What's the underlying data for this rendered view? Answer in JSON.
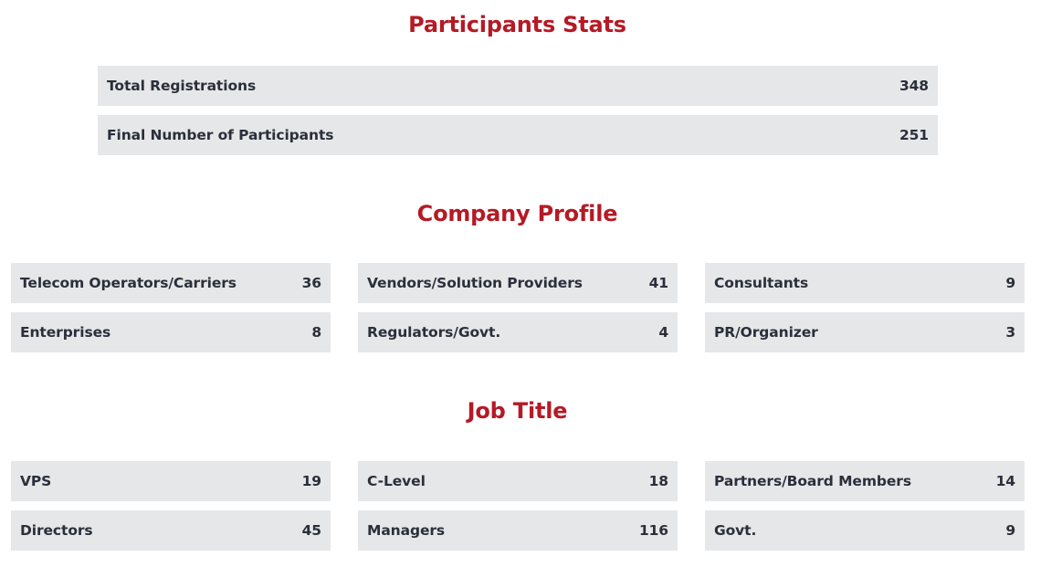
{
  "participants": {
    "title": "Participants Stats",
    "rows": [
      {
        "label": "Total Registrations",
        "value": "348"
      },
      {
        "label": "Final Number of Participants",
        "value": "251"
      }
    ]
  },
  "company_profile": {
    "title": "Company Profile",
    "rows": [
      {
        "label": "Telecom Operators/Carriers",
        "value": "36"
      },
      {
        "label": "Vendors/Solution Providers",
        "value": "41"
      },
      {
        "label": "Consultants",
        "value": "9"
      },
      {
        "label": "Enterprises",
        "value": "8"
      },
      {
        "label": "Regulators/Govt.",
        "value": "4"
      },
      {
        "label": "PR/Organizer",
        "value": "3"
      }
    ]
  },
  "job_title": {
    "title": "Job Title",
    "rows": [
      {
        "label": "VPS",
        "value": "19"
      },
      {
        "label": "C-Level",
        "value": "18"
      },
      {
        "label": "Partners/Board Members",
        "value": "14"
      },
      {
        "label": "Directors",
        "value": "45"
      },
      {
        "label": "Managers",
        "value": "116"
      },
      {
        "label": "Govt.",
        "value": "9"
      }
    ]
  },
  "colors": {
    "heading": "#b51a25",
    "row_background": "#e6e7e9",
    "text": "#2a2f3a"
  }
}
